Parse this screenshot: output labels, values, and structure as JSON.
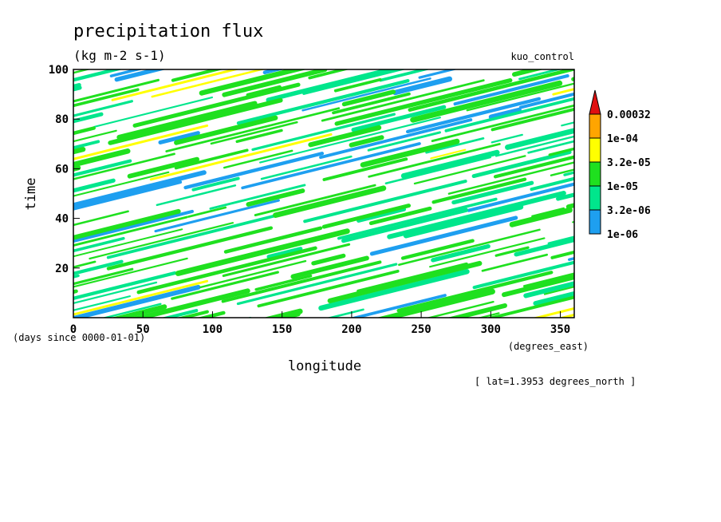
{
  "chart_data": {
    "type": "heatmap",
    "title": "precipitation flux",
    "units": "(kg m-2 s-1)",
    "experiment": "kuo_control",
    "xlabel": "longitude",
    "xunits": "(degrees_east)",
    "ylabel": "time",
    "yunits": "(days since 0000-01-01)",
    "note": "[ lat=1.3953 degrees_north ]",
    "xlim": [
      0,
      360
    ],
    "ylim": [
      0,
      100
    ],
    "xticks": [
      0,
      50,
      100,
      150,
      200,
      250,
      300,
      350
    ],
    "yticks": [
      20,
      40,
      60,
      80,
      100
    ],
    "grid": false,
    "legend_position": "right",
    "colorbar": {
      "levels": [
        "1e-06",
        "3.2e-06",
        "1e-05",
        "3.2e-05",
        "1e-04",
        "0.00032"
      ],
      "colors": [
        "#1e9ff0",
        "#00e68c",
        "#1fe01f",
        "#ffff00",
        "#ffa500",
        "#e01010"
      ]
    }
  }
}
